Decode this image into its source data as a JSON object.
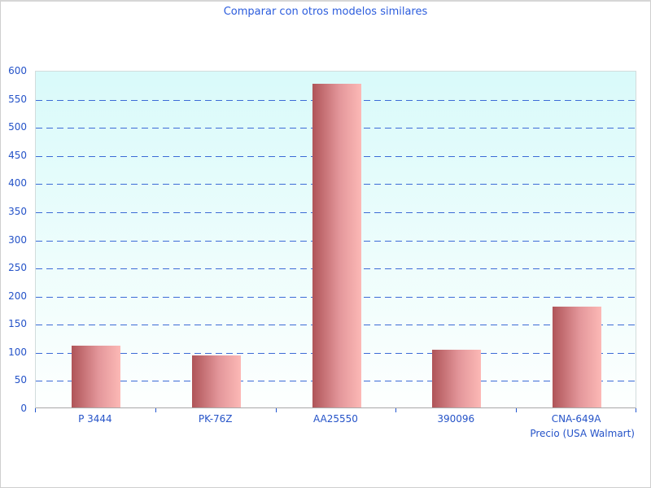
{
  "window": {
    "background": "#ffffff",
    "border_color": "#cfcfcf"
  },
  "chart_data": {
    "type": "bar",
    "title": "Comparar con otros modelos similares",
    "categories": [
      "P 3444",
      "PK-76Z",
      "AA25550",
      "390096",
      "CNA-649A"
    ],
    "values": [
      110,
      92,
      575,
      103,
      180
    ],
    "xlabel": "Precio (USA Walmart)",
    "ylabel": "",
    "ylim": [
      0,
      600
    ],
    "ytick_step": 50,
    "grid": "horizontal-dashed",
    "legend": "none",
    "colors": {
      "title_text": "#2b5cdd",
      "axis_text": "#2553c8",
      "gridline": "#3c6bd6",
      "tick": "#2457d0",
      "axis_line": "#a8a8a8",
      "plot_border": "#d2dcdc",
      "plot_bg_top": "#d9fafa",
      "plot_bg_mid": "#edfdfc",
      "plot_bg_bottom": "#fdfffe",
      "bar_gradient_left": "#af5458",
      "bar_gradient_mid": "#e3969a",
      "bar_gradient_right": "#fcb9b6"
    }
  }
}
